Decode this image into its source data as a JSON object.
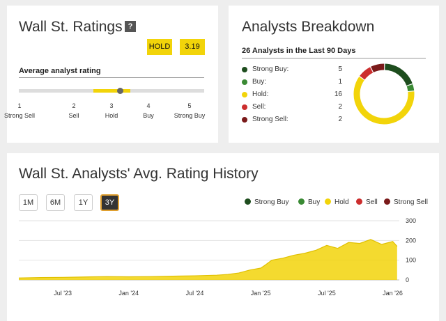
{
  "ratings": {
    "title": "Wall St. Ratings",
    "help": "?",
    "rating_label": "HOLD",
    "rating_value": "3.19",
    "subtitle": "Average analyst rating",
    "scale_position": 3.19,
    "scale": [
      {
        "n": "1",
        "label": "Strong Sell"
      },
      {
        "n": "2",
        "label": "Sell"
      },
      {
        "n": "3",
        "label": "Hold"
      },
      {
        "n": "4",
        "label": "Buy"
      },
      {
        "n": "5",
        "label": "Strong Buy"
      }
    ]
  },
  "breakdown": {
    "title": "Analysts Breakdown",
    "subtitle": "26 Analysts in the Last 90 Days",
    "items": [
      {
        "label": "Strong Buy:",
        "count": "5",
        "color": "#1e4d1e"
      },
      {
        "label": "Buy:",
        "count": "1",
        "color": "#3a8a34"
      },
      {
        "label": "Hold:",
        "count": "16",
        "color": "#f2d40a"
      },
      {
        "label": "Sell:",
        "count": "2",
        "color": "#cc2e2e"
      },
      {
        "label": "Strong Sell:",
        "count": "2",
        "color": "#7a1a1a"
      }
    ]
  },
  "history": {
    "title": "Wall St. Analysts' Avg. Rating History",
    "ranges": [
      "1M",
      "6M",
      "1Y",
      "3Y"
    ],
    "active_range": "3Y",
    "legend": [
      {
        "label": "Strong Buy",
        "color": "#1e4d1e"
      },
      {
        "label": "Buy",
        "color": "#3a8a34"
      },
      {
        "label": "Hold",
        "color": "#f2d40a"
      },
      {
        "label": "Sell",
        "color": "#cc2e2e"
      },
      {
        "label": "Strong Sell",
        "color": "#7a1a1a"
      }
    ]
  },
  "chart_data": {
    "type": "area",
    "x_ticks": [
      "Jul '23",
      "Jan '24",
      "Jul '24",
      "Jan '25",
      "Jul '25",
      "Jan '26"
    ],
    "y_ticks": [
      "0",
      "100",
      "200",
      "300"
    ],
    "ylim": [
      0,
      300
    ],
    "grid": true,
    "series": [
      {
        "name": "Hold",
        "color": "#f2d40a",
        "x": [
          "2023-03",
          "2023-05",
          "2023-07",
          "2023-09",
          "2023-11",
          "2024-01",
          "2024-03",
          "2024-05",
          "2024-07",
          "2024-09",
          "2024-10",
          "2024-11",
          "2024-12",
          "2025-01",
          "2025-01",
          "2025-02",
          "2025-03",
          "2025-04",
          "2025-05",
          "2025-06",
          "2025-07",
          "2025-08",
          "2025-09",
          "2025-10",
          "2025-11",
          "2025-12",
          "2026-01",
          "2026-01"
        ],
        "values": [
          10,
          12,
          13,
          15,
          17,
          16,
          17,
          19,
          21,
          24,
          28,
          35,
          50,
          60,
          75,
          100,
          110,
          125,
          135,
          150,
          175,
          160,
          190,
          185,
          205,
          180,
          195,
          170
        ]
      }
    ]
  }
}
